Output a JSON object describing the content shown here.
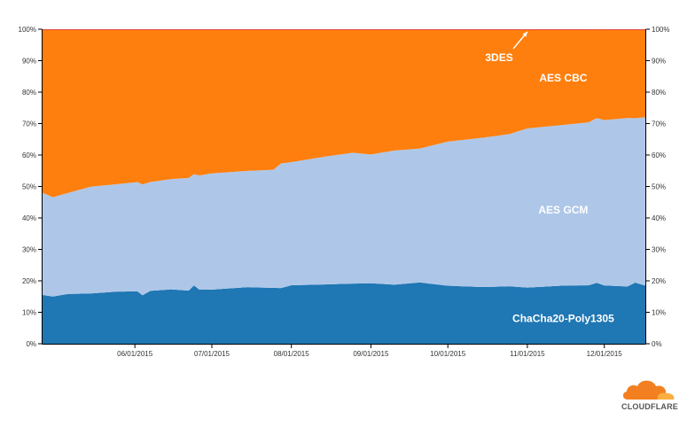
{
  "chart_data": {
    "type": "area",
    "stacked": true,
    "normalized": true,
    "ylim": [
      0,
      100
    ],
    "y_ticks": [
      "0%",
      "10%",
      "20%",
      "30%",
      "40%",
      "50%",
      "60%",
      "70%",
      "80%",
      "90%",
      "100%"
    ],
    "x_ticks": [
      "06/01/2015",
      "07/01/2015",
      "08/01/2015",
      "09/01/2015",
      "10/01/2015",
      "11/01/2015",
      "12/01/2015"
    ],
    "x_tick_dates": [
      "2015-06-01",
      "2015-07-01",
      "2015-08-01",
      "2015-09-01",
      "2015-10-01",
      "2015-11-01",
      "2015-12-01"
    ],
    "x_range": [
      "2015-04-26",
      "2015-12-17"
    ],
    "grid": false,
    "series": [
      {
        "name": "ChaCha20-Poly1305",
        "color": "#1f77b4",
        "points": [
          [
            "2015-04-26",
            15.5
          ],
          [
            "2015-04-30",
            14.5
          ],
          [
            "2015-05-06",
            15.5
          ],
          [
            "2015-05-15",
            16
          ],
          [
            "2015-05-25",
            16.5
          ],
          [
            "2015-06-02",
            16.5
          ],
          [
            "2015-06-04",
            15
          ],
          [
            "2015-06-07",
            16.5
          ],
          [
            "2015-06-15",
            17
          ],
          [
            "2015-06-22",
            16.5
          ],
          [
            "2015-06-24",
            18.5
          ],
          [
            "2015-06-26",
            17
          ],
          [
            "2015-07-01",
            17
          ],
          [
            "2015-07-15",
            17.5
          ],
          [
            "2015-07-25",
            17
          ],
          [
            "2015-08-01",
            18.5
          ],
          [
            "2015-08-15",
            19
          ],
          [
            "2015-08-25",
            19.3
          ],
          [
            "2015-09-01",
            18.8
          ],
          [
            "2015-09-10",
            18.5
          ],
          [
            "2015-09-20",
            19
          ],
          [
            "2015-10-01",
            18.5
          ],
          [
            "2015-10-15",
            18
          ],
          [
            "2015-10-25",
            18.3
          ],
          [
            "2015-11-01",
            18.5
          ],
          [
            "2015-11-15",
            19
          ],
          [
            "2015-11-25",
            19
          ],
          [
            "2015-11-28",
            20.5
          ],
          [
            "2015-12-01",
            19
          ],
          [
            "2015-12-10",
            18.5
          ],
          [
            "2015-12-13",
            19.5
          ],
          [
            "2015-12-17",
            18.5
          ]
        ]
      },
      {
        "name": "AES GCM",
        "color": "#aec7e8",
        "points": [
          [
            "2015-04-26",
            32.5
          ],
          [
            "2015-04-30",
            30.5
          ],
          [
            "2015-05-06",
            31.5
          ],
          [
            "2015-05-15",
            34
          ],
          [
            "2015-05-25",
            34
          ],
          [
            "2015-06-02",
            34.5
          ],
          [
            "2015-06-07",
            34
          ],
          [
            "2015-06-15",
            34.5
          ],
          [
            "2015-06-22",
            35
          ],
          [
            "2015-07-01",
            36.5
          ],
          [
            "2015-07-15",
            36
          ],
          [
            "2015-07-25",
            36
          ],
          [
            "2015-07-28",
            39.5
          ],
          [
            "2015-08-01",
            39
          ],
          [
            "2015-08-15",
            41
          ],
          [
            "2015-08-25",
            42
          ],
          [
            "2015-09-01",
            40
          ],
          [
            "2015-09-10",
            42
          ],
          [
            "2015-09-20",
            41.5
          ],
          [
            "2015-10-01",
            46
          ],
          [
            "2015-10-15",
            47.5
          ],
          [
            "2015-10-25",
            48.5
          ],
          [
            "2015-11-01",
            52.5
          ],
          [
            "2015-11-15",
            52.5
          ],
          [
            "2015-11-25",
            53
          ],
          [
            "2015-11-28",
            55.5
          ],
          [
            "2015-12-01",
            54
          ],
          [
            "2015-12-10",
            54.5
          ],
          [
            "2015-12-13",
            52.5
          ],
          [
            "2015-12-17",
            53.5
          ]
        ]
      },
      {
        "name": "AES CBC",
        "color": "#ff7f0e",
        "points": [
          [
            "2015-04-26",
            51.8
          ],
          [
            "2015-12-17",
            27.8
          ]
        ]
      },
      {
        "name": "3DES",
        "color": "#d62728",
        "points": [
          [
            "2015-04-26",
            0.2
          ],
          [
            "2015-12-17",
            0.2
          ]
        ]
      }
    ],
    "annotations": [
      {
        "text": "3DES",
        "date": "2015-10-21",
        "value": 91,
        "arrow_to": [
          "2015-11-01",
          99.2
        ]
      },
      {
        "text": "AES CBC",
        "date": "2015-11-15",
        "value": 84.5
      },
      {
        "text": "AES GCM",
        "date": "2015-11-15",
        "value": 42.5
      },
      {
        "text": "ChaCha20-Poly1305",
        "date": "2015-11-15",
        "value": 8
      }
    ]
  },
  "logo": {
    "text": "CLOUDFLARE",
    "name": "cloudflare-logo"
  }
}
